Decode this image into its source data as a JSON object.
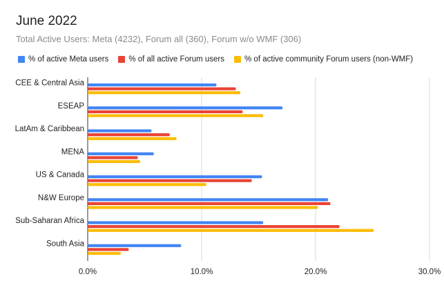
{
  "title": "June 2022",
  "subtitle": "Total Active Users: Meta (4232), Forum all (360), Forum w/o WMF (306)",
  "chart_data": {
    "type": "bar",
    "orientation": "horizontal",
    "title": "June 2022",
    "subtitle": "Total Active Users: Meta (4232), Forum all (360), Forum w/o WMF (306)",
    "categories": [
      "CEE & Central Asia",
      "ESEAP",
      "LatAm & Caribbean",
      "MENA",
      "US & Canada",
      "N&W Europe",
      "Sub-Saharan Africa",
      "South Asia"
    ],
    "series": [
      {
        "name": "% of active Meta users",
        "color": "#4285f4",
        "values": [
          11.3,
          17.1,
          5.6,
          5.8,
          15.3,
          21.1,
          15.4,
          8.2
        ]
      },
      {
        "name": "% of all active Forum users",
        "color": "#ea4335",
        "values": [
          13.0,
          13.6,
          7.2,
          4.4,
          14.4,
          21.3,
          22.1,
          3.6
        ]
      },
      {
        "name": "% of active community Forum users (non-WMF)",
        "color": "#fbbc04",
        "values": [
          13.4,
          15.4,
          7.8,
          4.6,
          10.4,
          20.2,
          25.1,
          2.9
        ]
      }
    ],
    "xlim": [
      0,
      30
    ],
    "xticks": [
      "0.0%",
      "10.0%",
      "20.0%",
      "30.0%"
    ],
    "legend_position": "top",
    "grid": true
  }
}
